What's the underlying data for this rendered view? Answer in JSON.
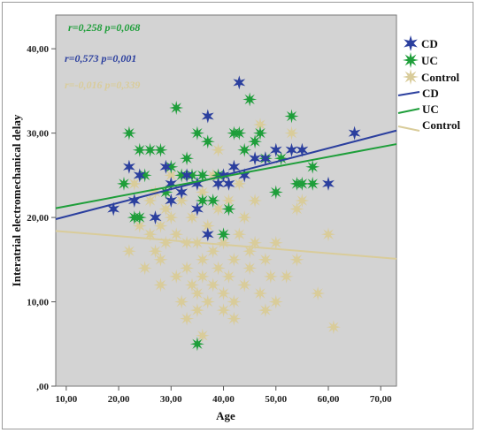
{
  "chart_data": {
    "type": "scatter",
    "xlabel": "Age",
    "ylabel": "Interatrial electromechanical delay",
    "xlim": [
      8,
      73
    ],
    "ylim": [
      0,
      44
    ],
    "xticks": [
      10,
      20,
      30,
      40,
      50,
      60,
      70
    ],
    "yticks": [
      0,
      10,
      20,
      30,
      40
    ],
    "xtick_labels": [
      "10,00",
      "20,00",
      "30,00",
      "40,00",
      "50,00",
      "60,00",
      "70,00"
    ],
    "ytick_labels": [
      ",00",
      "10,00",
      "20,00",
      "30,00",
      "40,00"
    ],
    "background_color": "#d3d3d3",
    "grid": false,
    "legend_position": "right",
    "annotations": [
      {
        "text": "r=0,258 p=0,068",
        "color": "#1e9e3a"
      },
      {
        "text": "r=0,573 p=0,001",
        "color": "#2b3f9e"
      },
      {
        "text": "r=-0,016 p=0,339",
        "color": "#d9cc9a"
      }
    ],
    "series": [
      {
        "name": "CD",
        "color": "#2b3f9e",
        "points": [
          [
            19,
            21
          ],
          [
            22,
            26
          ],
          [
            23,
            22
          ],
          [
            24,
            25
          ],
          [
            27,
            20
          ],
          [
            29,
            26
          ],
          [
            30,
            24
          ],
          [
            32,
            23
          ],
          [
            33,
            25
          ],
          [
            35,
            21
          ],
          [
            35,
            24
          ],
          [
            37,
            32
          ],
          [
            37,
            18
          ],
          [
            39,
            24
          ],
          [
            40,
            25
          ],
          [
            41,
            24
          ],
          [
            43,
            36
          ],
          [
            44,
            25
          ],
          [
            46,
            27
          ],
          [
            48,
            27
          ],
          [
            50,
            28
          ],
          [
            53,
            28
          ],
          [
            55,
            28
          ],
          [
            60,
            24
          ],
          [
            65,
            30
          ],
          [
            42,
            26
          ],
          [
            30,
            22
          ]
        ],
        "fit": {
          "x": [
            8,
            73
          ],
          "y": [
            19.8,
            30.3
          ]
        }
      },
      {
        "name": "UC",
        "color": "#1e9e3a",
        "points": [
          [
            21,
            24
          ],
          [
            22,
            30
          ],
          [
            23,
            20
          ],
          [
            24,
            20
          ],
          [
            24,
            28
          ],
          [
            25,
            25
          ],
          [
            26,
            28
          ],
          [
            28,
            28
          ],
          [
            29,
            23
          ],
          [
            31,
            33
          ],
          [
            32,
            25
          ],
          [
            33,
            27
          ],
          [
            34,
            25
          ],
          [
            35,
            30
          ],
          [
            36,
            25
          ],
          [
            37,
            29
          ],
          [
            38,
            22
          ],
          [
            39,
            25
          ],
          [
            40,
            18
          ],
          [
            41,
            21
          ],
          [
            42,
            30
          ],
          [
            43,
            30
          ],
          [
            44,
            28
          ],
          [
            45,
            34
          ],
          [
            46,
            29
          ],
          [
            47,
            30
          ],
          [
            48,
            27
          ],
          [
            50,
            23
          ],
          [
            51,
            27
          ],
          [
            53,
            32
          ],
          [
            54,
            24
          ],
          [
            55,
            24
          ],
          [
            57,
            24
          ],
          [
            57,
            26
          ],
          [
            35,
            5
          ],
          [
            36,
            22
          ],
          [
            30,
            26
          ]
        ],
        "fit": {
          "x": [
            8,
            73
          ],
          "y": [
            21.1,
            28.7
          ]
        }
      },
      {
        "name": "Control",
        "color": "#d9cc9a",
        "points": [
          [
            22,
            16
          ],
          [
            23,
            24
          ],
          [
            24,
            19
          ],
          [
            25,
            14
          ],
          [
            26,
            22
          ],
          [
            26,
            18
          ],
          [
            27,
            23
          ],
          [
            27,
            16
          ],
          [
            28,
            19
          ],
          [
            28,
            15
          ],
          [
            29,
            17
          ],
          [
            29,
            21
          ],
          [
            30,
            25
          ],
          [
            30,
            20
          ],
          [
            31,
            13
          ],
          [
            31,
            18
          ],
          [
            32,
            22
          ],
          [
            32,
            10
          ],
          [
            33,
            17
          ],
          [
            33,
            14
          ],
          [
            34,
            20
          ],
          [
            34,
            12
          ],
          [
            35,
            17
          ],
          [
            35,
            11
          ],
          [
            35,
            9
          ],
          [
            36,
            23
          ],
          [
            36,
            15
          ],
          [
            36,
            13
          ],
          [
            37,
            19
          ],
          [
            37,
            10
          ],
          [
            38,
            25
          ],
          [
            38,
            16
          ],
          [
            38,
            12
          ],
          [
            39,
            28
          ],
          [
            39,
            21
          ],
          [
            39,
            14
          ],
          [
            40,
            17
          ],
          [
            40,
            11
          ],
          [
            40,
            9
          ],
          [
            41,
            22
          ],
          [
            41,
            13
          ],
          [
            42,
            15
          ],
          [
            42,
            10
          ],
          [
            43,
            18
          ],
          [
            43,
            24
          ],
          [
            44,
            12
          ],
          [
            45,
            16
          ],
          [
            46,
            17
          ],
          [
            46,
            22
          ],
          [
            47,
            31
          ],
          [
            47,
            11
          ],
          [
            48,
            15
          ],
          [
            48,
            9
          ],
          [
            49,
            13
          ],
          [
            50,
            10
          ],
          [
            52,
            13
          ],
          [
            53,
            30
          ],
          [
            54,
            15
          ],
          [
            54,
            21
          ],
          [
            55,
            22
          ],
          [
            58,
            11
          ],
          [
            60,
            18
          ],
          [
            61,
            7
          ],
          [
            33,
            8
          ],
          [
            42,
            8
          ],
          [
            44,
            20
          ],
          [
            50,
            17
          ],
          [
            28,
            12
          ],
          [
            36,
            6
          ],
          [
            45,
            14
          ]
        ],
        "fit": {
          "x": [
            8,
            73
          ],
          "y": [
            18.4,
            15.1
          ]
        }
      }
    ]
  }
}
